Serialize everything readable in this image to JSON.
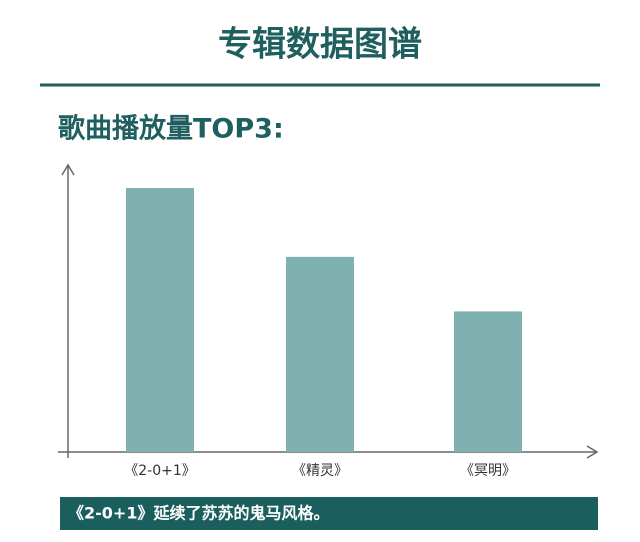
{
  "chart_data": {
    "type": "bar",
    "title": "专辑数据图谱",
    "subtitle": "歌曲播放量TOP3:",
    "categories": [
      "《2-0+1》",
      "《精灵》",
      "《冥明》"
    ],
    "values": [
      92,
      68,
      49
    ],
    "color": "#80b1b1",
    "ylim": [
      0,
      100
    ],
    "annotation": "《2-0+1》延续了苏苏的鬼马风格。"
  }
}
